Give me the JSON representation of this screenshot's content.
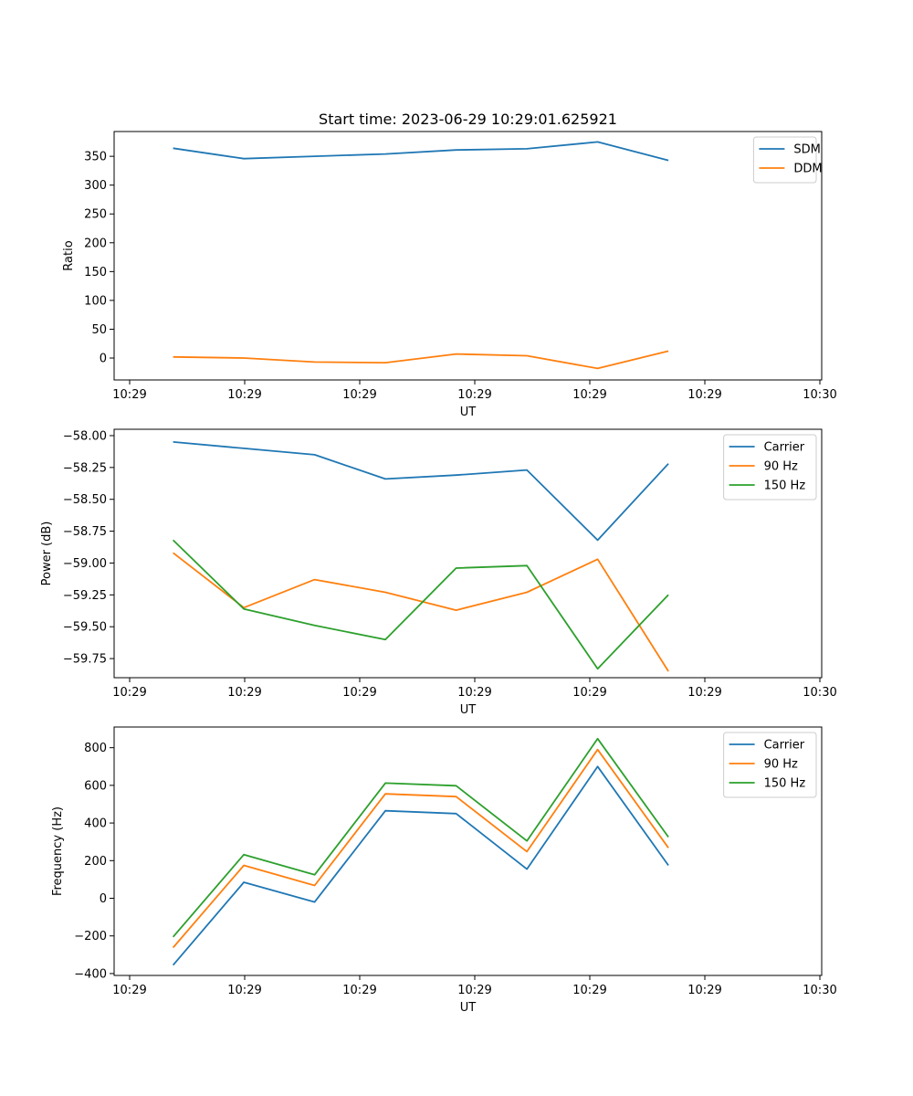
{
  "chart_data": [
    {
      "type": "line",
      "title": "Start time: 2023-06-29 10:29:01.625921",
      "xlabel": "UT",
      "ylabel": "Ratio",
      "x": [
        "10:29:01.6",
        "10:29:01.9",
        "10:29:02.2",
        "10:29:02.5",
        "10:29:02.8",
        "10:29:03.1",
        "10:29:03.4",
        "10:29:03.7"
      ],
      "xticks": [
        "10:29",
        "10:29",
        "10:29",
        "10:29",
        "10:29",
        "10:29",
        "10:30"
      ],
      "yticks": [
        0,
        50,
        100,
        150,
        200,
        250,
        300,
        350
      ],
      "ylim": [
        -38,
        393
      ],
      "legend": "top-right",
      "series": [
        {
          "name": "SDM",
          "color": "#1f77b4",
          "values": [
            364,
            346,
            350,
            354,
            361,
            363,
            375,
            343
          ]
        },
        {
          "name": "DDM",
          "color": "#ff7f0e",
          "values": [
            2,
            0,
            -7,
            -8,
            7,
            4,
            -18,
            12
          ]
        }
      ]
    },
    {
      "type": "line",
      "title": "",
      "xlabel": "UT",
      "ylabel": "Power (dB)",
      "x": [
        "10:29:01.6",
        "10:29:01.9",
        "10:29:02.2",
        "10:29:02.5",
        "10:29:02.8",
        "10:29:03.1",
        "10:29:03.4",
        "10:29:03.7"
      ],
      "xticks": [
        "10:29",
        "10:29",
        "10:29",
        "10:29",
        "10:29",
        "10:29",
        "10:30"
      ],
      "yticks": [
        -58.0,
        -58.25,
        -58.5,
        -58.75,
        -59.0,
        -59.25,
        -59.5,
        -59.75
      ],
      "ylim": [
        -59.9,
        -57.95
      ],
      "legend": "top-right",
      "series": [
        {
          "name": "Carrier",
          "color": "#1f77b4",
          "values": [
            -58.05,
            -58.1,
            -58.15,
            -58.34,
            -58.31,
            -58.27,
            -58.82,
            -58.22
          ]
        },
        {
          "name": "90 Hz",
          "color": "#ff7f0e",
          "values": [
            -58.92,
            -59.35,
            -59.13,
            -59.23,
            -59.37,
            -59.23,
            -58.97,
            -59.85
          ]
        },
        {
          "name": "150 Hz",
          "color": "#2ca02c",
          "values": [
            -58.82,
            -59.36,
            -59.49,
            -59.6,
            -59.04,
            -59.02,
            -59.83,
            -59.25
          ]
        }
      ]
    },
    {
      "type": "line",
      "title": "",
      "xlabel": "UT",
      "ylabel": "Frequency (Hz)",
      "x": [
        "10:29:01.6",
        "10:29:01.9",
        "10:29:02.2",
        "10:29:02.5",
        "10:29:02.8",
        "10:29:03.1",
        "10:29:03.4",
        "10:29:03.7"
      ],
      "xticks": [
        "10:29",
        "10:29",
        "10:29",
        "10:29",
        "10:29",
        "10:29",
        "10:30"
      ],
      "yticks": [
        -400,
        -200,
        0,
        200,
        400,
        600,
        800
      ],
      "ylim": [
        -410,
        910
      ],
      "legend": "top-right",
      "series": [
        {
          "name": "Carrier",
          "color": "#1f77b4",
          "values": [
            -355,
            85,
            -20,
            465,
            450,
            155,
            700,
            175
          ]
        },
        {
          "name": "90 Hz",
          "color": "#ff7f0e",
          "values": [
            -262,
            175,
            68,
            555,
            540,
            248,
            790,
            268
          ]
        },
        {
          "name": "150 Hz",
          "color": "#2ca02c",
          "values": [
            -205,
            232,
            125,
            612,
            598,
            305,
            848,
            325
          ]
        }
      ]
    }
  ]
}
